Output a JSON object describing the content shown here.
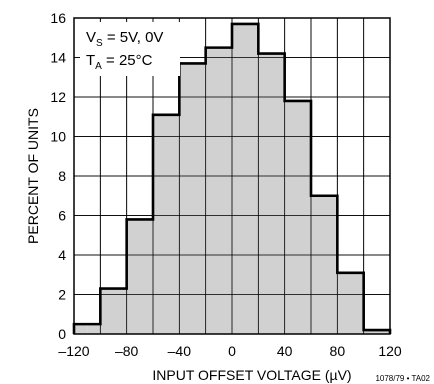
{
  "chart_data": {
    "type": "bar",
    "subtype": "histogram",
    "xlabel": "INPUT OFFSET VOLTAGE (µV)",
    "ylabel": "PERCENT OF UNITS",
    "xlim": [
      -120,
      120
    ],
    "ylim": [
      0,
      16
    ],
    "x_ticks": [
      "–120",
      "–80",
      "–40",
      "0",
      "40",
      "80",
      "120"
    ],
    "y_ticks": [
      "0",
      "2",
      "4",
      "6",
      "8",
      "10",
      "12",
      "14",
      "16"
    ],
    "grid": true,
    "bins": [
      {
        "from": -120,
        "to": -110,
        "value": 0.5
      },
      {
        "from": -110,
        "to": -100,
        "value": 0.5
      },
      {
        "from": -100,
        "to": -80,
        "value": 2.3
      },
      {
        "from": -80,
        "to": -60,
        "value": 5.8
      },
      {
        "from": -60,
        "to": -40,
        "value": 11.1
      },
      {
        "from": -40,
        "to": -20,
        "value": 13.7
      },
      {
        "from": -20,
        "to": 0,
        "value": 14.5
      },
      {
        "from": 0,
        "to": 20,
        "value": 15.7
      },
      {
        "from": 20,
        "to": 40,
        "value": 14.2
      },
      {
        "from": 40,
        "to": 60,
        "value": 11.8
      },
      {
        "from": 60,
        "to": 80,
        "value": 7.0
      },
      {
        "from": 80,
        "to": 100,
        "value": 3.1
      },
      {
        "from": 100,
        "to": 120,
        "value": 0.2
      }
    ],
    "fill_color": "#cccccc",
    "edge_color": "#000000",
    "annotation": {
      "line1_main": "V",
      "line1_sub": "S",
      "line1_rest": " = 5V, 0V",
      "line2_main": "T",
      "line2_sub": "A",
      "line2_rest": " = 25°C"
    },
    "figure_code": "1078/79 • TA02"
  }
}
